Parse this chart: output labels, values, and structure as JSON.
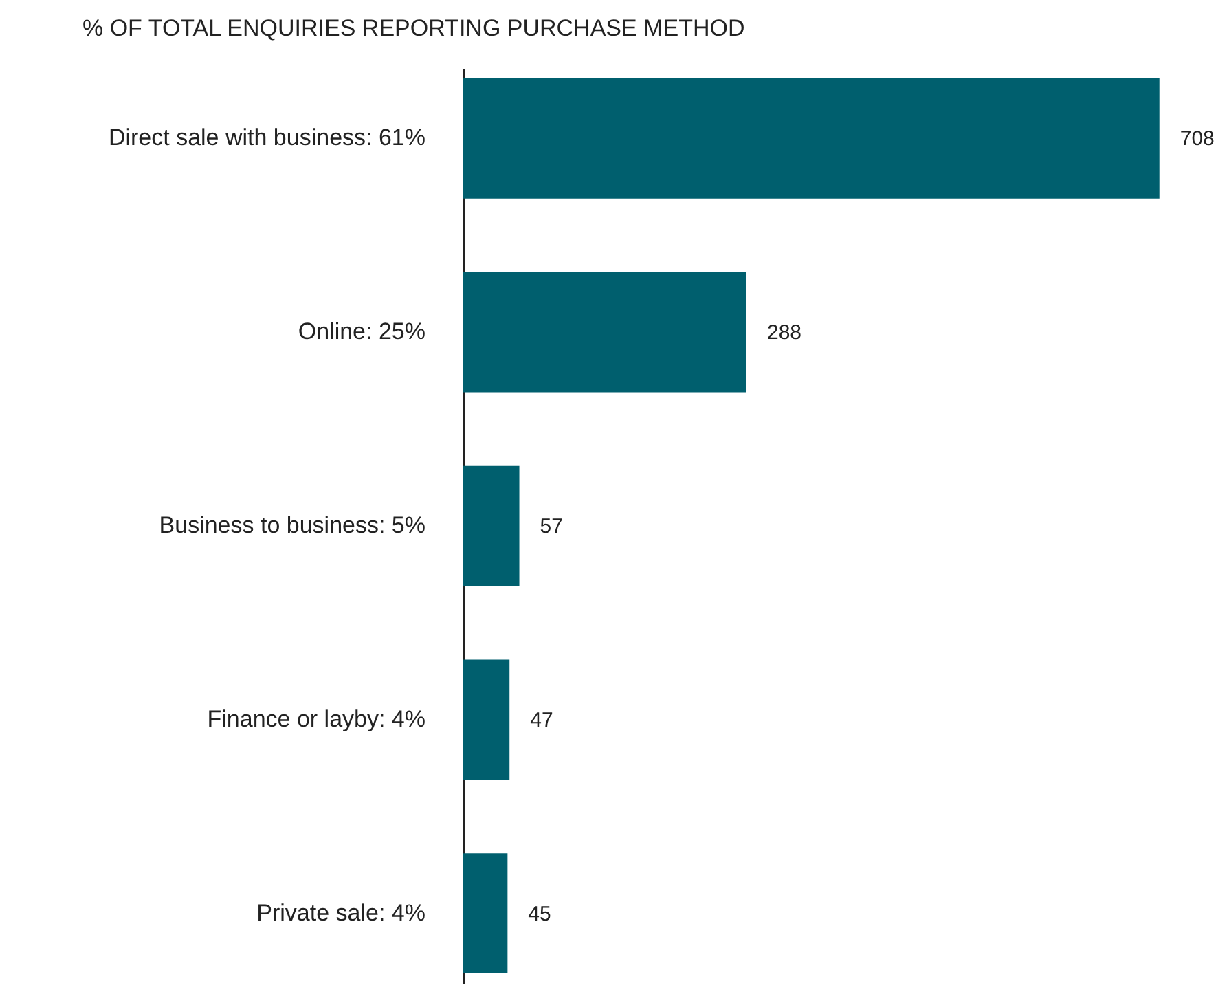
{
  "chart_data": {
    "type": "bar",
    "orientation": "horizontal",
    "title": "% OF TOTAL ENQUIRIES REPORTING PURCHASE METHOD",
    "categories": [
      "Direct sale with business: 61%",
      "Online: 25%",
      "Business to business: 5%",
      "Finance or layby: 4%",
      "Private sale: 4%"
    ],
    "values": [
      708,
      288,
      57,
      47,
      45
    ],
    "color": "#005f6e",
    "data_labels": true
  }
}
